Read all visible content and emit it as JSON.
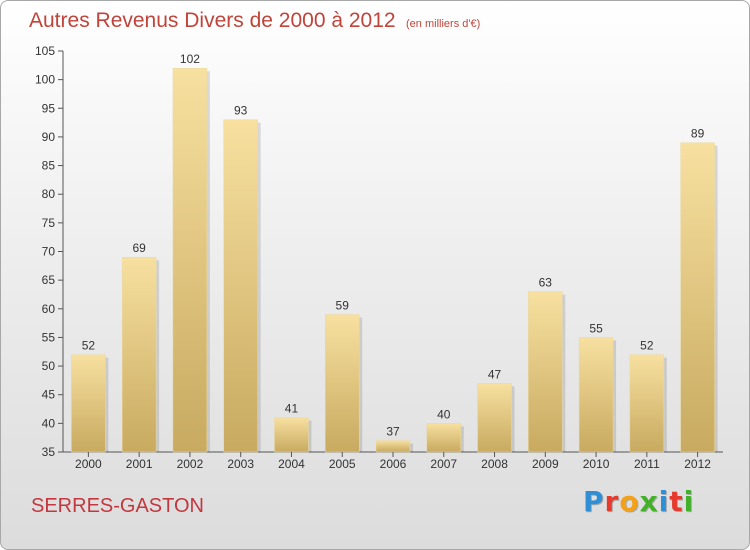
{
  "chart_data": {
    "type": "bar",
    "title": "Autres Revenus Divers de 2000 à 2012",
    "subtitle": "(en milliers d'€)",
    "categories": [
      "2000",
      "2001",
      "2002",
      "2003",
      "2004",
      "2005",
      "2006",
      "2007",
      "2008",
      "2009",
      "2010",
      "2011",
      "2012"
    ],
    "values": [
      52,
      69,
      102,
      93,
      41,
      59,
      37,
      40,
      47,
      63,
      55,
      52,
      89
    ],
    "ylim": [
      35,
      105
    ],
    "yticks": [
      35,
      40,
      45,
      50,
      55,
      60,
      65,
      70,
      75,
      80,
      85,
      90,
      95,
      100,
      105
    ],
    "xlabel": "",
    "ylabel": "",
    "grid": false,
    "legend": "none",
    "bar_color_top": "#f7e0a0",
    "bar_color_bottom": "#c8aa60"
  },
  "commune": "SERRES-GASTON",
  "logo": {
    "letters": [
      {
        "ch": "P",
        "color": "#2f8fd6"
      },
      {
        "ch": "r",
        "color": "#e63a2d"
      },
      {
        "ch": "o",
        "color": "#f4a11a"
      },
      {
        "ch": "x",
        "color": "#43b02a"
      },
      {
        "ch": "i",
        "color": "#2f8fd6"
      },
      {
        "ch": "t",
        "color": "#e63a2d"
      },
      {
        "ch": "i",
        "color": "#43b02a"
      }
    ]
  }
}
